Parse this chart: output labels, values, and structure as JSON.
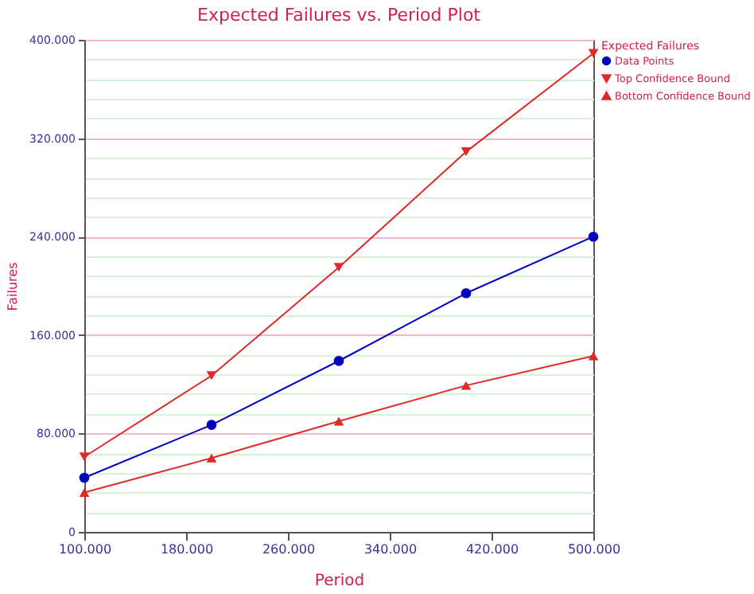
{
  "chart_data": {
    "type": "line",
    "title": "Expected Failures vs. Period Plot",
    "xlabel": "Period",
    "ylabel": "Failures",
    "legend_title": "Expected Failures",
    "x": [
      100000,
      200000,
      300000,
      400000,
      500000
    ],
    "series": [
      {
        "name": "Data Points",
        "color": "#0000c0",
        "marker": "circle",
        "values": [
          44000,
          87000,
          139000,
          194000,
          240000
        ]
      },
      {
        "name": "Top Confidence Bound",
        "color": "#e02828",
        "marker": "triangle-down",
        "values": [
          61000,
          127000,
          215000,
          309000,
          389000
        ]
      },
      {
        "name": "Bottom Confidence Bound",
        "color": "#e02828",
        "marker": "triangle",
        "values": [
          32000,
          60000,
          90000,
          119000,
          143000
        ]
      }
    ],
    "xlim": [
      100000,
      500000
    ],
    "xticks": [
      {
        "value": 100000,
        "label": "100.000"
      },
      {
        "value": 180000,
        "label": "180.000"
      },
      {
        "value": 260000,
        "label": "260.000"
      },
      {
        "value": 340000,
        "label": "340.000"
      },
      {
        "value": 420000,
        "label": "420.000"
      },
      {
        "value": 500000,
        "label": "500.000"
      }
    ],
    "ylim": [
      0,
      400000
    ],
    "yticks": [
      0,
      {
        "value": 16000,
        "label": null
      },
      {
        "value": 32000,
        "label": null
      },
      {
        "value": 48000,
        "label": null
      },
      {
        "value": 64000,
        "label": null
      },
      {
        "value": 80000,
        "label": "80.000"
      },
      {
        "value": 96000,
        "label": null
      },
      {
        "value": 112000,
        "label": null
      },
      {
        "value": 128000,
        "label": null
      },
      {
        "value": 144000,
        "label": null
      },
      {
        "value": 160000,
        "label": "160.000"
      },
      {
        "value": 176000,
        "label": null
      },
      {
        "value": 192000,
        "label": null
      },
      {
        "value": 208000,
        "label": null
      },
      {
        "value": 224000,
        "label": null
      },
      {
        "value": 240000,
        "label": "240.000"
      },
      {
        "value": 256000,
        "label": null
      },
      {
        "value": 272000,
        "label": null
      },
      {
        "value": 288000,
        "label": null
      },
      {
        "value": 304000,
        "label": null
      },
      {
        "value": 320000,
        "label": "320.000"
      },
      {
        "value": 336000,
        "label": null
      },
      {
        "value": 352000,
        "label": null
      },
      {
        "value": 368000,
        "label": null
      },
      {
        "value": 384000,
        "label": null
      },
      {
        "value": 400000,
        "label": "400.000"
      }
    ],
    "grid": "y",
    "legend": "top right",
    "line_style": "solid"
  }
}
